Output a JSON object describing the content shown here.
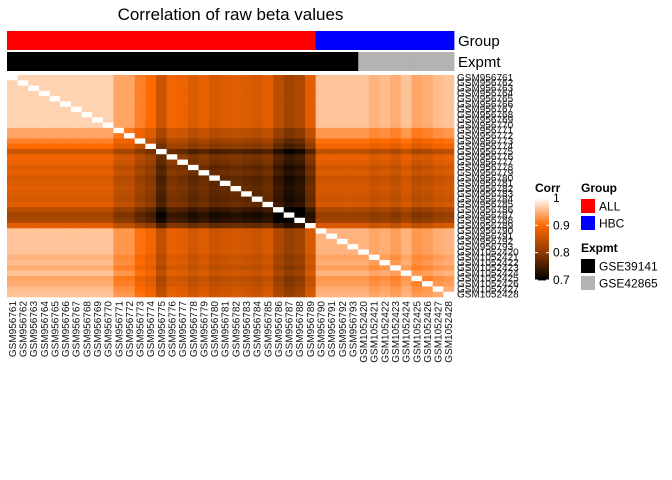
{
  "chart_data": {
    "type": "heatmap",
    "title": "Correlation of raw beta values",
    "samples": [
      "GSM956761",
      "GSM956762",
      "GSM956763",
      "GSM956764",
      "GSM956765",
      "GSM956766",
      "GSM956767",
      "GSM956768",
      "GSM956769",
      "GSM956770",
      "GSM956771",
      "GSM956772",
      "GSM956773",
      "GSM956774",
      "GSM956775",
      "GSM956776",
      "GSM956777",
      "GSM956778",
      "GSM956779",
      "GSM956780",
      "GSM956781",
      "GSM956782",
      "GSM956783",
      "GSM956784",
      "GSM956785",
      "GSM956786",
      "GSM956787",
      "GSM956788",
      "GSM956789",
      "GSM956790",
      "GSM956791",
      "GSM956792",
      "GSM956793",
      "GSM1052420",
      "GSM1052421",
      "GSM1052422",
      "GSM1052423",
      "GSM1052424",
      "GSM1052425",
      "GSM1052426",
      "GSM1052427",
      "GSM1052428"
    ],
    "annotations": [
      {
        "name": "Group",
        "values": [
          "ALL",
          "ALL",
          "ALL",
          "ALL",
          "ALL",
          "ALL",
          "ALL",
          "ALL",
          "ALL",
          "ALL",
          "ALL",
          "ALL",
          "ALL",
          "ALL",
          "ALL",
          "ALL",
          "ALL",
          "ALL",
          "ALL",
          "ALL",
          "ALL",
          "ALL",
          "ALL",
          "ALL",
          "ALL",
          "ALL",
          "ALL",
          "ALL",
          "ALL",
          "HBC",
          "HBC",
          "HBC",
          "HBC",
          "HBC",
          "HBC",
          "HBC",
          "HBC",
          "HBC",
          "HBC",
          "HBC",
          "HBC",
          "HBC"
        ]
      },
      {
        "name": "Expmt",
        "values": [
          "GSE39141",
          "GSE39141",
          "GSE39141",
          "GSE39141",
          "GSE39141",
          "GSE39141",
          "GSE39141",
          "GSE39141",
          "GSE39141",
          "GSE39141",
          "GSE39141",
          "GSE39141",
          "GSE39141",
          "GSE39141",
          "GSE39141",
          "GSE39141",
          "GSE39141",
          "GSE39141",
          "GSE39141",
          "GSE39141",
          "GSE39141",
          "GSE39141",
          "GSE39141",
          "GSE39141",
          "GSE39141",
          "GSE39141",
          "GSE39141",
          "GSE39141",
          "GSE39141",
          "GSE39141",
          "GSE39141",
          "GSE39141",
          "GSE39141",
          "GSE42865",
          "GSE42865",
          "GSE42865",
          "GSE42865",
          "GSE42865",
          "GSE42865",
          "GSE42865",
          "GSE42865",
          "GSE42865"
        ]
      }
    ],
    "sample_level": [
      0.985,
      0.985,
      0.985,
      0.985,
      0.985,
      0.985,
      0.985,
      0.985,
      0.985,
      0.985,
      0.955,
      0.955,
      0.93,
      0.915,
      0.87,
      0.905,
      0.9,
      0.885,
      0.895,
      0.88,
      0.885,
      0.89,
      0.885,
      0.88,
      0.89,
      0.855,
      0.835,
      0.845,
      0.89,
      0.975,
      0.975,
      0.975,
      0.975,
      0.975,
      0.965,
      0.97,
      0.96,
      0.975,
      0.955,
      0.96,
      0.97,
      0.975
    ],
    "value_model": "corr(i,j) approx = 1 - (1 - sample_level[i]) - (1 - sample_level[j]); diagonal = 1",
    "color_scale": {
      "name": "Corr",
      "range": [
        0.7,
        1.0
      ],
      "breaks": [
        1,
        0.9,
        0.8,
        0.7
      ],
      "stops": [
        {
          "value": 0.7,
          "color": "#000000"
        },
        {
          "value": 0.8,
          "color": "#8b3a00"
        },
        {
          "value": 0.9,
          "color": "#ff6a00"
        },
        {
          "value": 1.0,
          "color": "#ffffff"
        }
      ]
    },
    "legends": [
      {
        "title": "Group",
        "entries": [
          {
            "label": "ALL",
            "color": "#ff0000"
          },
          {
            "label": "HBC",
            "color": "#0000ff"
          }
        ]
      },
      {
        "title": "Expmt",
        "entries": [
          {
            "label": "GSE39141",
            "color": "#000000"
          },
          {
            "label": "GSE42865",
            "color": "#b3b3b3"
          }
        ]
      }
    ],
    "legend_placement": "right"
  }
}
